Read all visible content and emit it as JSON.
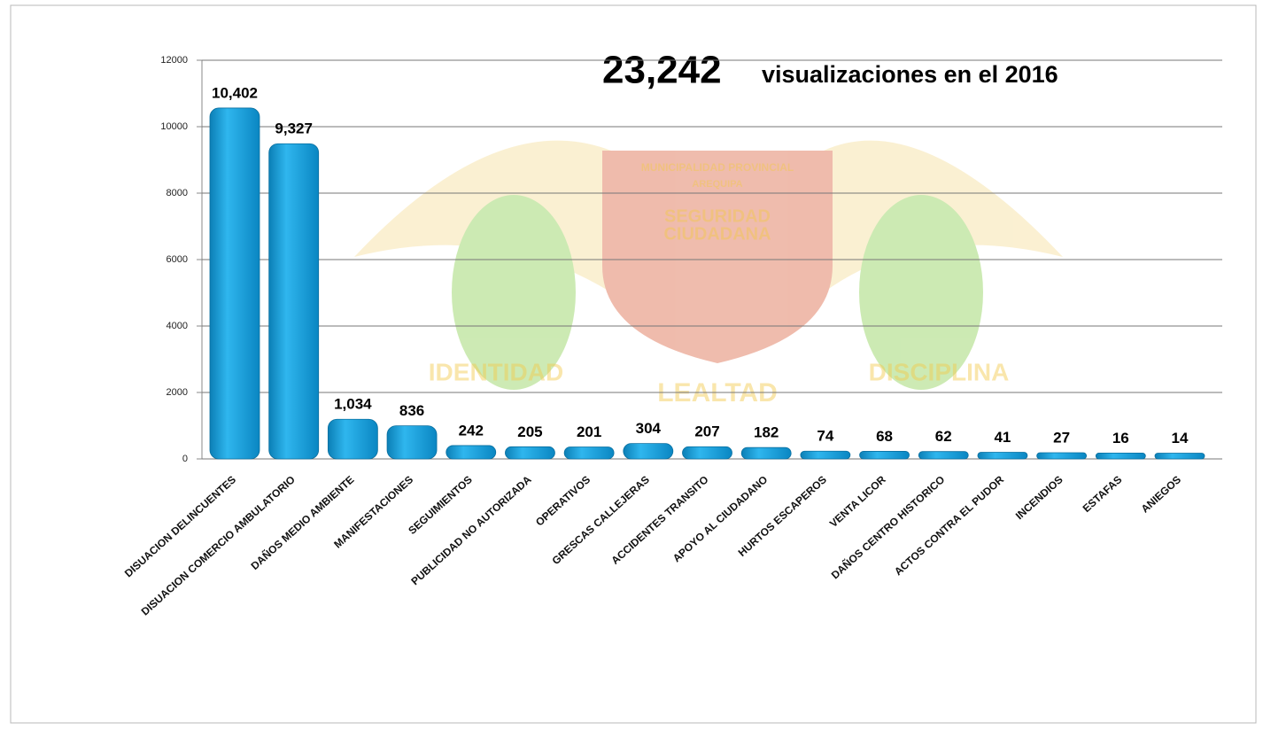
{
  "chart_data": {
    "type": "bar",
    "title": "23,242",
    "subtitle": "visualizaciones en el 2016",
    "watermark": [
      "MUNICIPALIDAD PROVINCIAL",
      "AREQUIPA",
      "SEGURIDAD",
      "CIUDADANA",
      "IDENTIDAD",
      "LEALTAD",
      "DISCIPLINA"
    ],
    "categories": [
      "DISUACION DELINCUENTES",
      "DISUACION COMERCIO AMBULATORIO",
      "DAÑOS MEDIO AMBIENTE",
      "MANIFESTACIONES",
      "SEGUIMIENTOS",
      "PUBLICIDAD NO AUTORIZADA",
      "OPERATIVOS",
      "GRESCAS CALLEJERAS",
      "ACCIDENTES TRANSITO",
      "APOYO AL CIUDADANO",
      "HURTOS ESCAPEROS",
      "VENTA LICOR",
      "DAÑOS CENTRO HISTORICO",
      "ACTOS CONTRA EL PUDOR",
      "INCENDIOS",
      "ESTAFAS",
      "ANIEGOS"
    ],
    "values": [
      10402,
      9327,
      1034,
      836,
      242,
      205,
      201,
      304,
      207,
      182,
      74,
      68,
      62,
      41,
      27,
      16,
      14
    ],
    "value_labels": [
      "10,402",
      "9,327",
      "1,034",
      "836",
      "242",
      "205",
      "201",
      "304",
      "207",
      "182",
      "74",
      "68",
      "62",
      "41",
      "27",
      "16",
      "14"
    ],
    "color": "#1ba3de",
    "ylim": [
      0,
      12000
    ],
    "yticks": [
      0,
      2000,
      4000,
      6000,
      8000,
      10000,
      12000
    ],
    "grid": true
  }
}
